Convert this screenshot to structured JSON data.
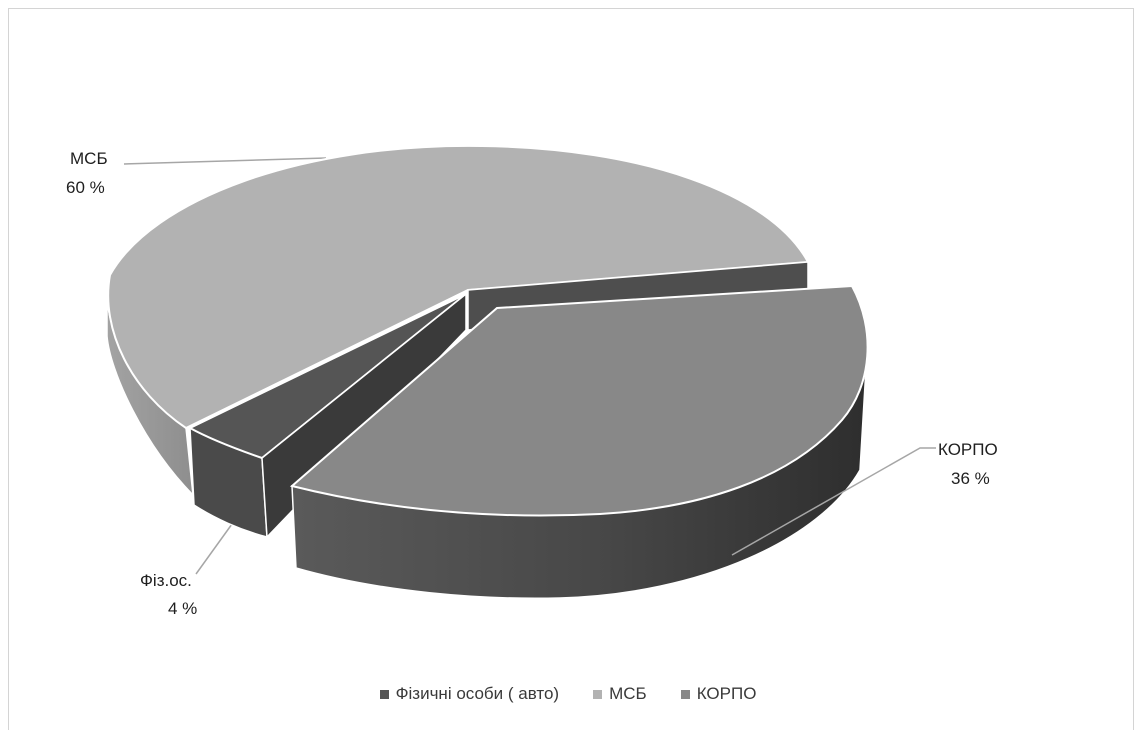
{
  "chart_data": {
    "type": "pie",
    "title": "",
    "series": [
      {
        "label": "Фізичні особи ( авто)",
        "short_label": "Фіз.ос.",
        "value": 4,
        "display": "4 %",
        "color": "#555555"
      },
      {
        "label": "МСБ",
        "short_label": "МСБ",
        "value": 60,
        "display": "60 %",
        "color": "#b2b2b2"
      },
      {
        "label": "КОРПО",
        "short_label": "КОРПО",
        "value": 36,
        "display": "36 %",
        "color": "#888888"
      }
    ],
    "legend_position": "bottom",
    "style": "3d-exploded"
  },
  "colors": {
    "msb_top": "#b2b2b2",
    "msb_side": "#9a9a9a",
    "korpo_top": "#888888",
    "korpo_side": "#484848",
    "fiz_top": "#555555",
    "fiz_side": "#404040",
    "inner_wall": "#3a3a3a",
    "leader": "#a6a6a6"
  }
}
